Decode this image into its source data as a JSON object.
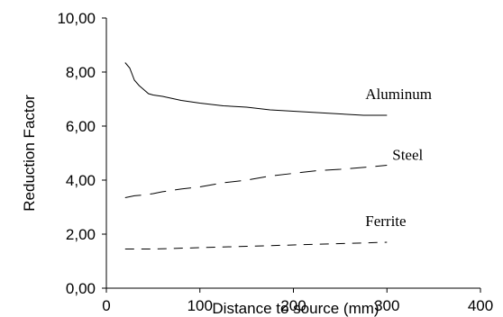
{
  "chart_data": {
    "type": "line",
    "title": "",
    "xlabel": "Distance to source (mm)",
    "ylabel": "Reduction Factor",
    "xlim": [
      0,
      400
    ],
    "ylim": [
      0,
      10
    ],
    "x_ticks": [
      0,
      100,
      200,
      300,
      400
    ],
    "y_ticks": [
      0,
      2,
      4,
      6,
      8,
      10
    ],
    "x_tick_labels": [
      "0",
      "100",
      "200",
      "300",
      "400"
    ],
    "y_tick_labels": [
      "0,00",
      "2,00",
      "4,00",
      "6,00",
      "8,00",
      "10,00"
    ],
    "grid": false,
    "legend": "inline labels at right end of each series",
    "series": [
      {
        "name": "Aluminum",
        "line_style": "solid",
        "x": [
          20,
          25,
          30,
          35,
          40,
          45,
          50,
          60,
          80,
          100,
          125,
          150,
          175,
          200,
          225,
          250,
          275,
          300
        ],
        "y": [
          8.35,
          8.15,
          7.7,
          7.5,
          7.35,
          7.2,
          7.15,
          7.1,
          6.95,
          6.85,
          6.75,
          6.7,
          6.6,
          6.55,
          6.5,
          6.45,
          6.4,
          6.4
        ]
      },
      {
        "name": "Steel",
        "line_style": "long-dash",
        "x": [
          20,
          30,
          40,
          50,
          60,
          80,
          100,
          125,
          150,
          175,
          200,
          225,
          250,
          275,
          300
        ],
        "y": [
          3.35,
          3.42,
          3.45,
          3.5,
          3.57,
          3.67,
          3.75,
          3.9,
          4.0,
          4.15,
          4.25,
          4.35,
          4.4,
          4.47,
          4.55
        ]
      },
      {
        "name": "Ferrite",
        "line_style": "short-dash",
        "x": [
          20,
          50,
          100,
          150,
          200,
          250,
          300
        ],
        "y": [
          1.45,
          1.45,
          1.5,
          1.55,
          1.6,
          1.65,
          1.7
        ]
      }
    ]
  }
}
